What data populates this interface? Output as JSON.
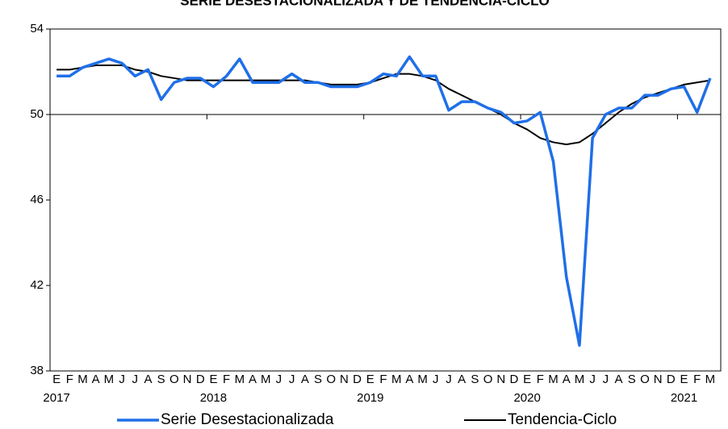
{
  "chart_data": {
    "type": "line",
    "title": "SERIE DESESTACIONALIZADA Y DE TENDENCIA-CICLO",
    "categories": [
      "E",
      "F",
      "M",
      "A",
      "M",
      "J",
      "J",
      "A",
      "S",
      "O",
      "N",
      "D",
      "E",
      "F",
      "M",
      "A",
      "M",
      "J",
      "J",
      "A",
      "S",
      "O",
      "N",
      "D",
      "E",
      "F",
      "M",
      "A",
      "M",
      "J",
      "J",
      "A",
      "S",
      "O",
      "N",
      "D",
      "E",
      "F",
      "M",
      "A",
      "M",
      "J",
      "J",
      "A",
      "S",
      "O",
      "N",
      "D",
      "E",
      "F",
      "M"
    ],
    "year_labels": [
      "2017",
      null,
      null,
      null,
      null,
      null,
      null,
      null,
      null,
      null,
      null,
      null,
      "2018",
      null,
      null,
      null,
      null,
      null,
      null,
      null,
      null,
      null,
      null,
      null,
      "2019",
      null,
      null,
      null,
      null,
      null,
      null,
      null,
      null,
      null,
      null,
      null,
      "2020",
      null,
      null,
      null,
      null,
      null,
      null,
      null,
      null,
      null,
      null,
      null,
      "2021",
      null,
      null
    ],
    "series": [
      {
        "name": "Serie Desestacionalizada",
        "color": "#1f6fe8",
        "width": 3.5,
        "values": [
          51.8,
          51.8,
          52.2,
          52.4,
          52.6,
          52.4,
          51.8,
          52.1,
          50.7,
          51.5,
          51.7,
          51.7,
          51.3,
          51.8,
          52.6,
          51.5,
          51.5,
          51.5,
          51.9,
          51.5,
          51.5,
          51.3,
          51.3,
          51.3,
          51.5,
          51.9,
          51.8,
          52.7,
          51.8,
          51.8,
          50.2,
          50.6,
          50.6,
          50.3,
          50.1,
          49.6,
          49.7,
          50.1,
          47.8,
          42.4,
          39.2,
          48.9,
          50.0,
          50.3,
          50.3,
          50.9,
          50.9,
          51.2,
          51.3,
          50.1,
          51.7
        ]
      },
      {
        "name": "Tendencia-Ciclo",
        "color": "#000000",
        "width": 2,
        "values": [
          52.1,
          52.1,
          52.2,
          52.3,
          52.3,
          52.3,
          52.1,
          52.0,
          51.8,
          51.7,
          51.6,
          51.6,
          51.6,
          51.6,
          51.6,
          51.6,
          51.6,
          51.6,
          51.6,
          51.6,
          51.5,
          51.4,
          51.4,
          51.4,
          51.5,
          51.7,
          51.9,
          51.9,
          51.8,
          51.6,
          51.2,
          50.9,
          50.6,
          50.3,
          50.0,
          49.6,
          49.3,
          48.9,
          48.7,
          48.6,
          48.7,
          49.1,
          49.6,
          50.1,
          50.5,
          50.8,
          51.0,
          51.2,
          51.4,
          51.5,
          51.6
        ]
      }
    ],
    "ylim": [
      38,
      54
    ],
    "yticks": [
      38,
      42,
      46,
      50,
      54
    ],
    "x_axis_crossing": 50,
    "grid": false
  }
}
